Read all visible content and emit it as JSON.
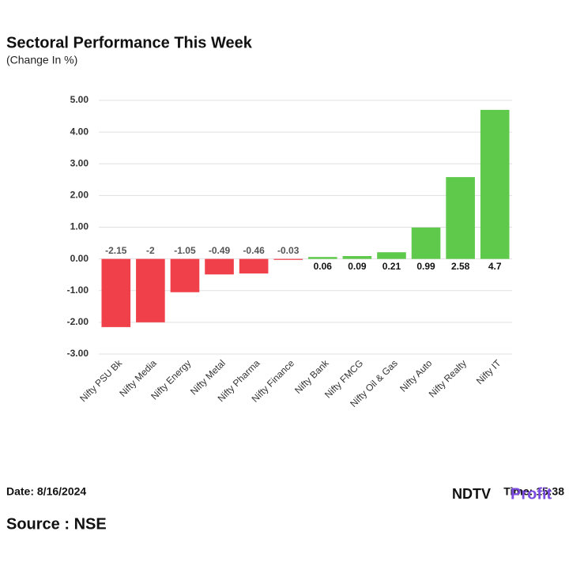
{
  "chart_data": {
    "type": "bar",
    "title": "Sectoral Performance This Week",
    "subtitle": "(Change In %)",
    "categories": [
      "Nifty PSU Bk",
      "Nifty Media",
      "Nifty Energy",
      "Nifty Metal",
      "Nifty Pharma",
      "Nifty Finance",
      "Nifty Bank",
      "Nifty FMCG",
      "Nifty Oil & Gas",
      "Nifty Auto",
      "Nifty Realty",
      "Nifty IT"
    ],
    "values": [
      -2.15,
      -2,
      -1.05,
      -0.49,
      -0.46,
      -0.03,
      0.06,
      0.09,
      0.21,
      0.99,
      2.58,
      4.7
    ],
    "positive_color": "#5ec94a",
    "negative_color": "#f0404a",
    "ylim": [
      -3,
      5
    ],
    "yticks": [
      {
        "value": 5,
        "label": "5.00"
      },
      {
        "value": 4,
        "label": "4.00"
      },
      {
        "value": 3,
        "label": "3.00"
      },
      {
        "value": 2,
        "label": "2.00"
      },
      {
        "value": 1,
        "label": "1.00"
      },
      {
        "value": 0,
        "label": "0.00"
      },
      {
        "value": -1,
        "label": "-1.00"
      },
      {
        "value": -2,
        "label": "-2.00"
      },
      {
        "value": -3,
        "label": "-3.00"
      }
    ],
    "grid": true
  },
  "footer": {
    "date": "Date: 8/16/2024",
    "time": "Time: 15:38",
    "logo_left": "NDTV",
    "logo_right": "Profit",
    "source": "Source : NSE"
  }
}
